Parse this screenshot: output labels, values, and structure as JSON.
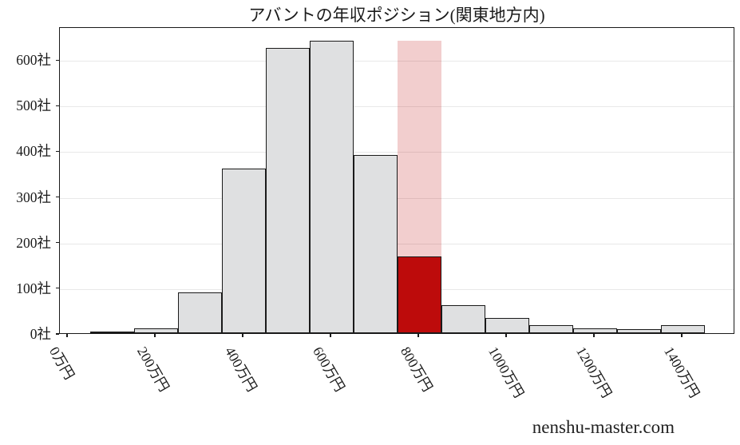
{
  "watermark": "nenshu-master.com",
  "chart_data": {
    "type": "bar",
    "title": "アバントの年収ポジション(関東地方内)",
    "categories": [
      "0万円",
      "100万円",
      "200万円",
      "300万円",
      "400万円",
      "500万円",
      "600万円",
      "700万円",
      "800万円",
      "900万円",
      "1000万円",
      "1100万円",
      "1200万円",
      "1300万円",
      "1400万円"
    ],
    "values": [
      0,
      2,
      10,
      90,
      360,
      625,
      640,
      390,
      168,
      62,
      33,
      17,
      11,
      9,
      17
    ],
    "highlight": {
      "category": "800万円",
      "index": 8,
      "value": 168,
      "band_top": 640
    },
    "x_tick_labels": [
      "0万円",
      "200万円",
      "400万円",
      "600万円",
      "800万円",
      "1000万円",
      "1200万円",
      "1400万円"
    ],
    "y_ticks": [
      0,
      100,
      200,
      300,
      400,
      500,
      600
    ],
    "y_tick_labels": [
      "0社",
      "100社",
      "200社",
      "300社",
      "400社",
      "500社",
      "600社"
    ],
    "ylim": [
      0,
      672
    ],
    "xlabel": "",
    "ylabel": "",
    "grid": true,
    "legend": null,
    "colors": {
      "bar_fill": "#dfe0e1",
      "bar_edge": "#1a1a1a",
      "highlight_fill": "#bd0b0b",
      "highlight_band": "rgba(189,11,11,0.2)",
      "grid": "#e8e8e8",
      "axis": "#1a1a1a",
      "text": "#1a1a1a"
    }
  }
}
